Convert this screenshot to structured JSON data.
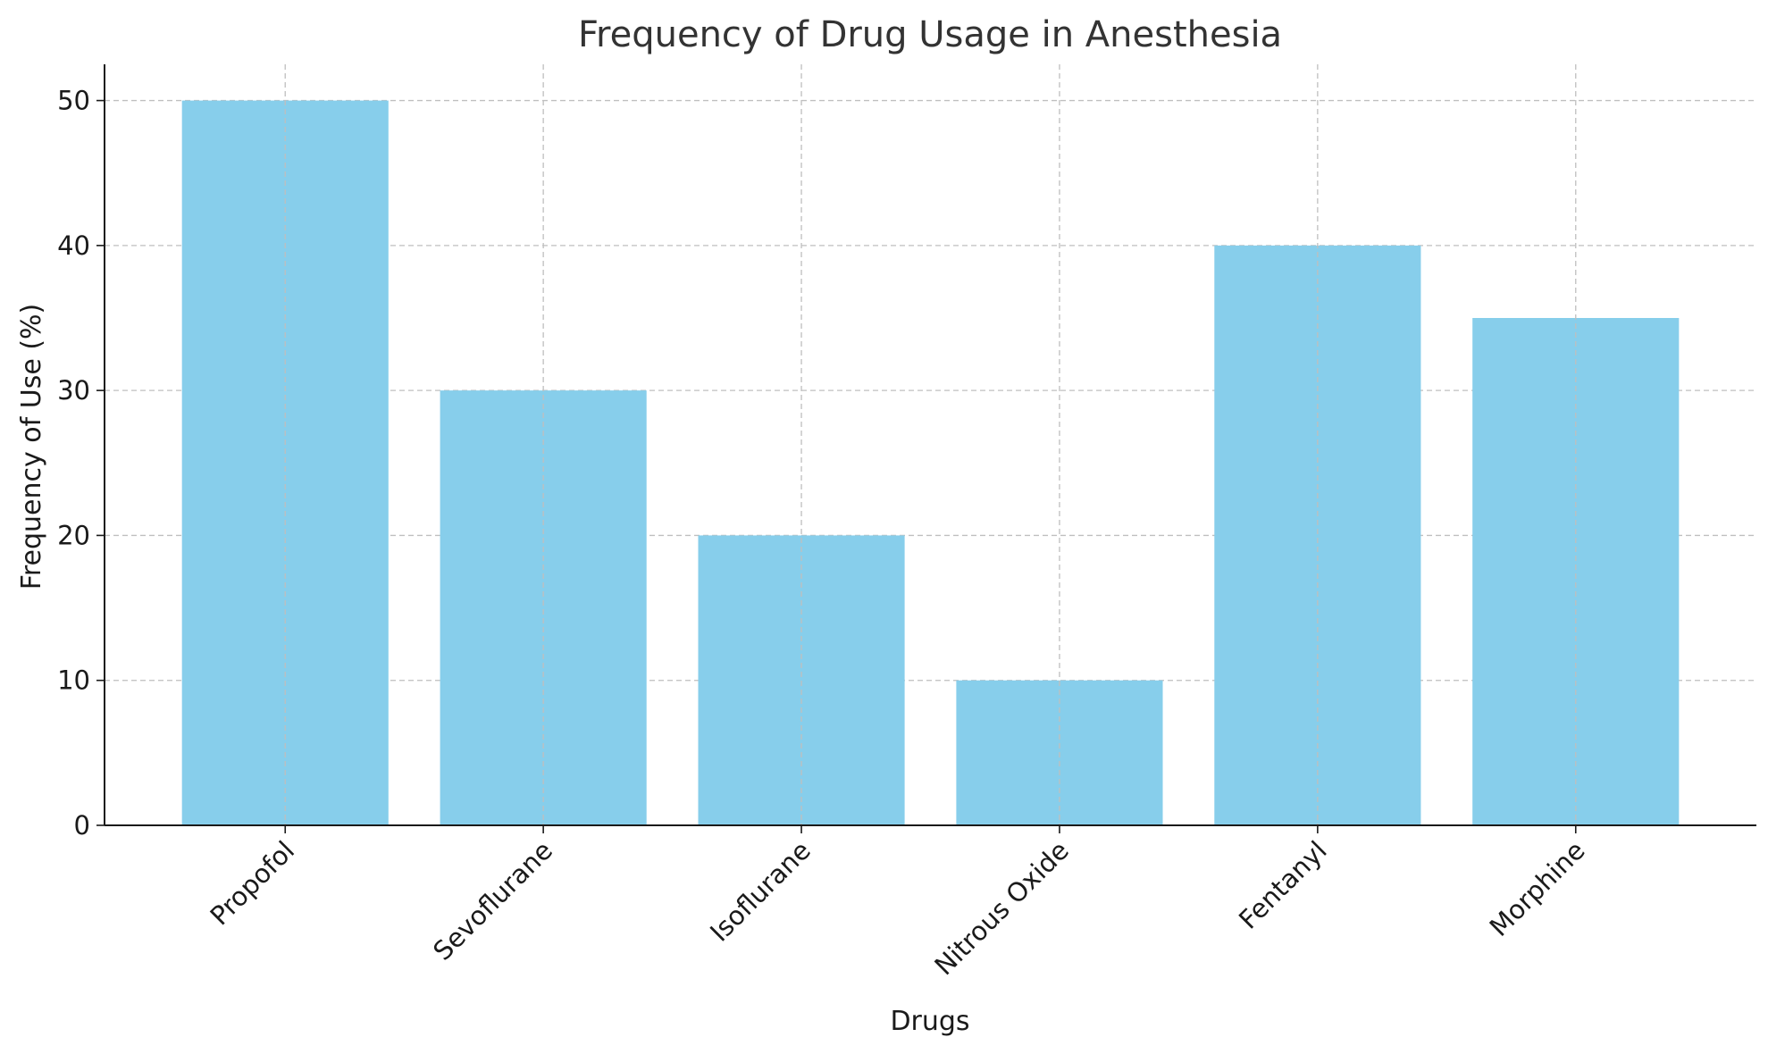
{
  "chart_data": {
    "type": "bar",
    "title": "Frequency of Drug Usage in Anesthesia",
    "xlabel": "Drugs",
    "ylabel": "Frequency of Use (%)",
    "categories": [
      "Propofol",
      "Sevoflurane",
      "Isoflurane",
      "Nitrous Oxide",
      "Fentanyl",
      "Morphine"
    ],
    "values": [
      50,
      30,
      20,
      10,
      40,
      35
    ],
    "ylim": [
      0,
      52.5
    ],
    "yticks": [
      0,
      10,
      20,
      30,
      40,
      50
    ],
    "ytick_labels": [
      "0",
      "10",
      "20",
      "30",
      "40",
      "50"
    ],
    "grid": true,
    "bar_color": "#87ceeb"
  }
}
